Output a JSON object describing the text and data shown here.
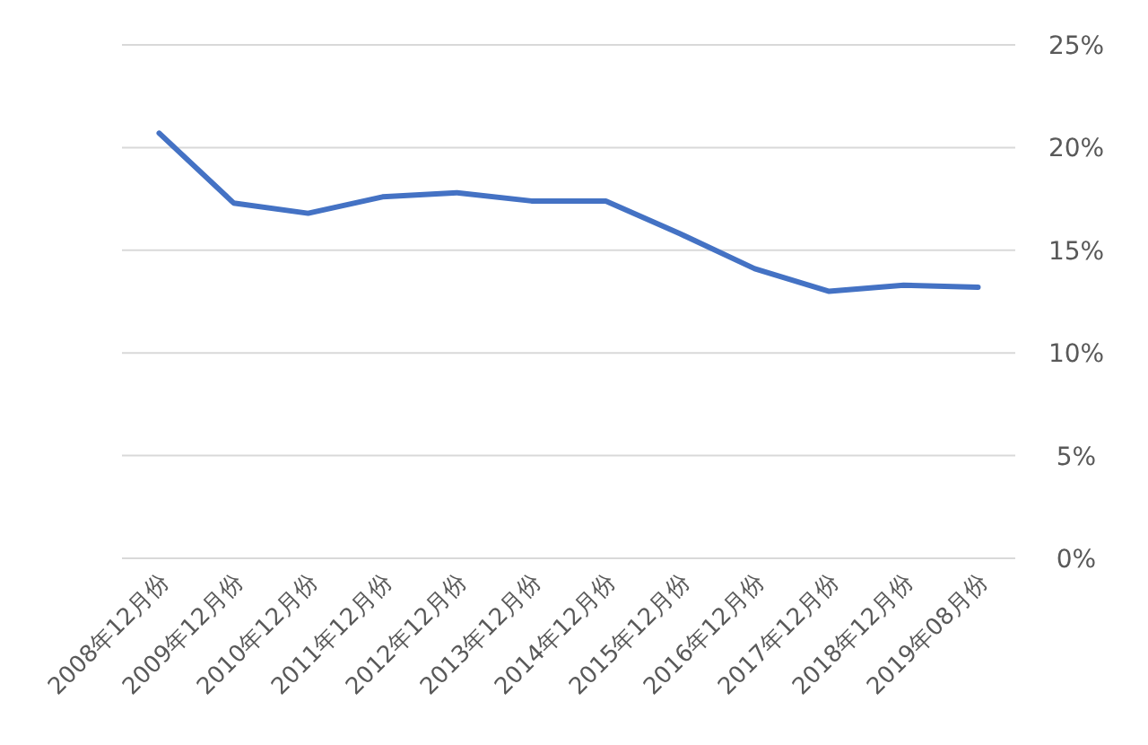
{
  "chart_data": {
    "type": "line",
    "categories": [
      "2008年12月份",
      "2009年12月份",
      "2010年12月份",
      "2011年12月份",
      "2012年12月份",
      "2013年12月份",
      "2014年12月份",
      "2015年12月份",
      "2016年12月份",
      "2017年12月份",
      "2018年12月份",
      "2019年08月份"
    ],
    "series": [
      {
        "color": "#4472c4",
        "values": [
          20.7,
          17.3,
          16.8,
          17.6,
          17.8,
          17.4,
          17.4,
          15.8,
          14.1,
          13.0,
          13.3,
          13.2
        ]
      }
    ],
    "ylim": [
      0,
      25
    ],
    "yticks": [
      {
        "value": 0,
        "label": "0%"
      },
      {
        "value": 5,
        "label": "5%"
      },
      {
        "value": 10,
        "label": "10%"
      },
      {
        "value": 15,
        "label": "15%"
      },
      {
        "value": 20,
        "label": "20%"
      },
      {
        "value": 25,
        "label": "25%"
      }
    ],
    "grid": "y",
    "marker": "none",
    "line_style": "solid"
  }
}
